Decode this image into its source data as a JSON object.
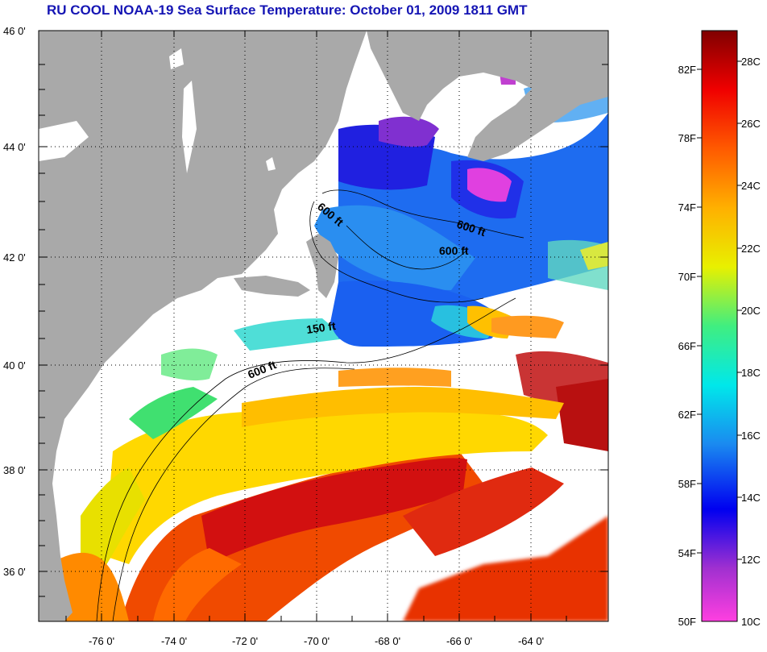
{
  "title": "RU COOL  NOAA-19  Sea Surface Temperature:  October 01, 2009 1811 GMT",
  "colors": {
    "land": "#a9a9a9",
    "cloud_nodata": "#ffffff",
    "title_text": "#1515b4",
    "grid": "#000000"
  },
  "axes": {
    "lat_labels": [
      "46 0'",
      "44 0'",
      "42 0'",
      "40 0'",
      "38 0'",
      "36 0'"
    ],
    "lon_labels": [
      "-76 0'",
      "-74 0'",
      "-72 0'",
      "-70 0'",
      "-68 0'",
      "-66 0'",
      "-64 0'"
    ]
  },
  "contour_labels": [
    "600 ft",
    "600 ft",
    "600 ft",
    "150 ft",
    "600 ft"
  ],
  "colorbar": {
    "fahrenheit_labels": [
      "82F",
      "78F",
      "74F",
      "70F",
      "66F",
      "62F",
      "58F",
      "54F",
      "50F"
    ],
    "celsius_labels": [
      "28C",
      "26C",
      "24C",
      "22C",
      "20C",
      "18C",
      "16C",
      "14C",
      "12C",
      "10C"
    ],
    "range_celsius": [
      10,
      29.2
    ]
  }
}
